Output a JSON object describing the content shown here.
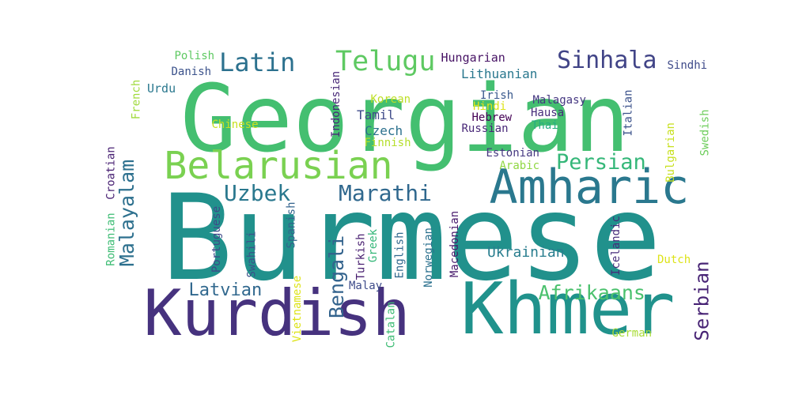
{
  "words": [
    {
      "text": "Burmese",
      "color": "#21918c"
    },
    {
      "text": "Georgian",
      "color": "#44bf70"
    },
    {
      "text": "Khmer",
      "color": "#20928c"
    },
    {
      "text": "Kurdish",
      "color": "#46327e"
    },
    {
      "text": "Amharic",
      "color": "#2a788e"
    },
    {
      "text": "Belarusian",
      "color": "#7ad151"
    },
    {
      "text": "Telugu",
      "color": "#5ec962"
    },
    {
      "text": "Latin",
      "color": "#2c718e"
    },
    {
      "text": "Sinhala",
      "color": "#414487"
    },
    {
      "text": "Uzbek",
      "color": "#2a788e"
    },
    {
      "text": "Marathi",
      "color": "#30688e"
    },
    {
      "text": "Persian",
      "color": "#35b779"
    },
    {
      "text": "Afrikaans",
      "color": "#4ac16d"
    },
    {
      "text": "Bengali",
      "color": "#33638d"
    },
    {
      "text": "Malayalam",
      "color": "#2d708e"
    },
    {
      "text": "Serbian",
      "color": "#482475"
    },
    {
      "text": "Latvian",
      "color": "#31688e"
    },
    {
      "text": "Ukrainian",
      "color": "#287d8e"
    },
    {
      "text": "Hungarian",
      "color": "#471365"
    },
    {
      "text": "Lithuanian",
      "color": "#2a788e"
    },
    {
      "text": "Polish",
      "color": "#5ec962"
    },
    {
      "text": "Danish",
      "color": "#3b528b"
    },
    {
      "text": "Urdu",
      "color": "#2a788e"
    },
    {
      "text": "French",
      "color": "#9fda3a"
    },
    {
      "text": "Indonesian",
      "color": "#482878"
    },
    {
      "text": "Korean",
      "color": "#bddf26"
    },
    {
      "text": "Chinese",
      "color": "#c8e020"
    },
    {
      "text": "Tamil",
      "color": "#3e4a89"
    },
    {
      "text": "Czech",
      "color": "#2c718e"
    },
    {
      "text": "Finnish",
      "color": "#b5de2b"
    },
    {
      "text": "Irish",
      "color": "#38588c"
    },
    {
      "text": "Hindi",
      "color": "#dde318"
    },
    {
      "text": "Hebrew",
      "color": "#440154"
    },
    {
      "text": "Russian",
      "color": "#482878"
    },
    {
      "text": "Malagasy",
      "color": "#453781"
    },
    {
      "text": "Hausa",
      "color": "#472c7a"
    },
    {
      "text": "Thai",
      "color": "#26ad81"
    },
    {
      "text": "Sindhi",
      "color": "#3e4a89"
    },
    {
      "text": "Italian",
      "color": "#3b528b"
    },
    {
      "text": "Swedish",
      "color": "#6ccd5a"
    },
    {
      "text": "Bulgarian",
      "color": "#c8e020"
    },
    {
      "text": "Estonian",
      "color": "#453781"
    },
    {
      "text": "Arabic",
      "color": "#90d743"
    },
    {
      "text": "Croatian",
      "color": "#482173"
    },
    {
      "text": "Romanian",
      "color": "#3dbc74"
    },
    {
      "text": "Portuguese",
      "color": "#3e4989"
    },
    {
      "text": "Swahili",
      "color": "#3b528b"
    },
    {
      "text": "Spanish",
      "color": "#33638d"
    },
    {
      "text": "Turkish",
      "color": "#481f70"
    },
    {
      "text": "Greek",
      "color": "#35b779"
    },
    {
      "text": "English",
      "color": "#31688e"
    },
    {
      "text": "Norwegian",
      "color": "#2c718e"
    },
    {
      "text": "Macedonian",
      "color": "#481a6c"
    },
    {
      "text": "Icelandic",
      "color": "#472d7b"
    },
    {
      "text": "Dutch",
      "color": "#dde318"
    },
    {
      "text": "German",
      "color": "#a8db34"
    },
    {
      "text": "Vietnamese",
      "color": "#dde318"
    },
    {
      "text": "Malay",
      "color": "#3e4c8a"
    },
    {
      "text": "Catalan",
      "color": "#3dbc74"
    }
  ]
}
